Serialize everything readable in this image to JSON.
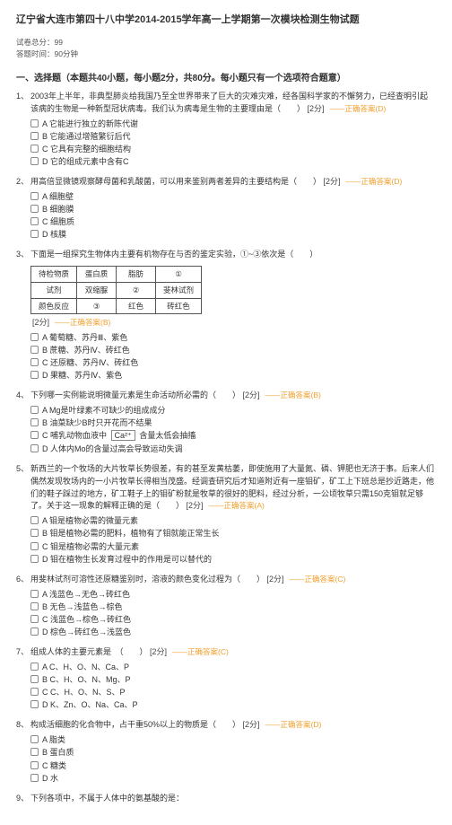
{
  "title": "辽宁省大连市第四十八中学2014-2015学年高一上学期第一次模块检测生物试题",
  "meta": {
    "total_score_label": "试卷总分：",
    "total_score_value": "99",
    "duration_label": "答题时间：",
    "duration_value": "90分钟"
  },
  "section1": {
    "header": "一、选择题（本题共40小题，每小题2分，共80分。每小题只有一个选项符合题意）"
  },
  "q1": {
    "num": "1、",
    "stem_a": "2003年上半年，非典型肺炎给我国乃至全世界带来了巨大的灾难灾难，经各国科学家的不懈努力，已经查明引起该病的生物是一种新型冠状病毒。我们认为病毒是生物的主要理由是（　　）",
    "score": "[2分]",
    "answer": "——正确答案(D)",
    "opts": {
      "a": "A 它能进行独立的新陈代谢",
      "b": "B 它能通过增殖繁衍后代",
      "c": "C 它具有完整的细胞结构",
      "d": "D 它的组成元素中含有C"
    }
  },
  "q2": {
    "num": "2、",
    "stem": "用高倍显微镜观察酵母菌和乳酸菌，可以用来鉴别两者差异的主要结构是（　　）",
    "score": "[2分]",
    "answer": "——正确答案(D)",
    "opts": {
      "a": "A 细胞壁",
      "b": "B 细胞膜",
      "c": "C 细胞质",
      "d": "D 核膜"
    }
  },
  "q3": {
    "num": "3、",
    "stem": "下面是一组探究生物体内主要有机物存在与否的鉴定实验，①~③依次是（　　）",
    "table": {
      "r1c1": "待检物质",
      "r1c2": "蛋白质",
      "r1c3": "脂肪",
      "r1c4": "①",
      "r2c1": "试剂",
      "r2c2": "双缩脲",
      "r2c3": "②",
      "r2c4": "斐林试剂",
      "r3c1": "颜色反应",
      "r3c2": "③",
      "r3c3": "红色",
      "r3c4": "砖红色"
    },
    "score": "[2分]",
    "answer": "——正确答案(B)",
    "opts": {
      "a": "A 葡萄糖、苏丹Ⅲ、紫色",
      "b": "B 蔗糖、苏丹Ⅳ、砖红色",
      "c": "C 还原糖、苏丹Ⅳ、砖红色",
      "d": "D 果糖、苏丹Ⅳ、紫色"
    }
  },
  "q4": {
    "num": "4、",
    "stem": "下列哪一实例能说明微量元素是生命活动所必需的（　　）",
    "score": "[2分]",
    "answer": "——正确答案(B)",
    "opts": {
      "a": "A Mg是叶绿素不可缺少的组成成分",
      "b": "B 油菜缺少B时只开花而不结果",
      "c_pre": "C 哺乳动物血液中",
      "c_mid": "Ca²⁺",
      "c_post": "  含量太低会抽搐",
      "d": "D 人体内Mo的含量过高会导致运动失调"
    }
  },
  "q5": {
    "num": "5、",
    "stem": "新西兰的一个牧场的大片牧草长势很差，有的甚至发黄枯萎，即使施用了大量氮、磷、钾肥也无济于事。后来人们偶然发现牧场内的一小片牧草长得相当茂盛。经调查研究后才知道附近有一座钼矿，矿工上下班总是抄近路走，他们的鞋子踩过的地方，矿工鞋子上的钼矿粉就是牧草的很好的肥料，经过分析，一公顷牧草只需150克钼就足够了。关于这一现象的解释正确的是（　　）",
    "score": "[2分]",
    "answer": "——正确答案(A)",
    "opts": {
      "a": "A 钼是植物必需的微量元素",
      "b": "B 钼是植物必需的肥料，植物有了钼就能正常生长",
      "c": "C 钼是植物必需的大量元素",
      "d": "D 钼在植物生长发育过程中的作用是可以替代的"
    }
  },
  "q6": {
    "num": "6、",
    "stem": "用斐林试剂可溶性还原糖鉴别时，溶液的颜色变化过程为（　　）",
    "score": "[2分]",
    "answer": "——正确答案(C)",
    "opts": {
      "a": "A 浅蓝色→无色→砖红色",
      "b": "B 无色→浅蓝色→棕色",
      "c": "C 浅蓝色→棕色→砖红色",
      "d": "D 棕色→砖红色→浅蓝色"
    }
  },
  "q7": {
    "num": "7、",
    "stem": "组成人体的主要元素是　（　　）",
    "score": "[2分]",
    "answer": "——正确答案(C)",
    "opts": {
      "a": "A C、H、O、N、Ca、P",
      "b": "B C、H、O、N、Mg、P",
      "c": "C C、H、O、N、S、P",
      "d": "D K、Zn、O、Na、Ca、P"
    }
  },
  "q8": {
    "num": "8、",
    "stem": "构成活细胞的化合物中，占干重50%以上的物质是（　　）",
    "score": "[2分]",
    "answer": "——正确答案(D)",
    "opts": {
      "a": "A 脂类",
      "b": "B 蛋白质",
      "c": "C 糖类",
      "d": "D 水"
    }
  },
  "q9": {
    "num": "9、",
    "stem": "下列各项中，不属于人体中的氨基酸的是："
  }
}
